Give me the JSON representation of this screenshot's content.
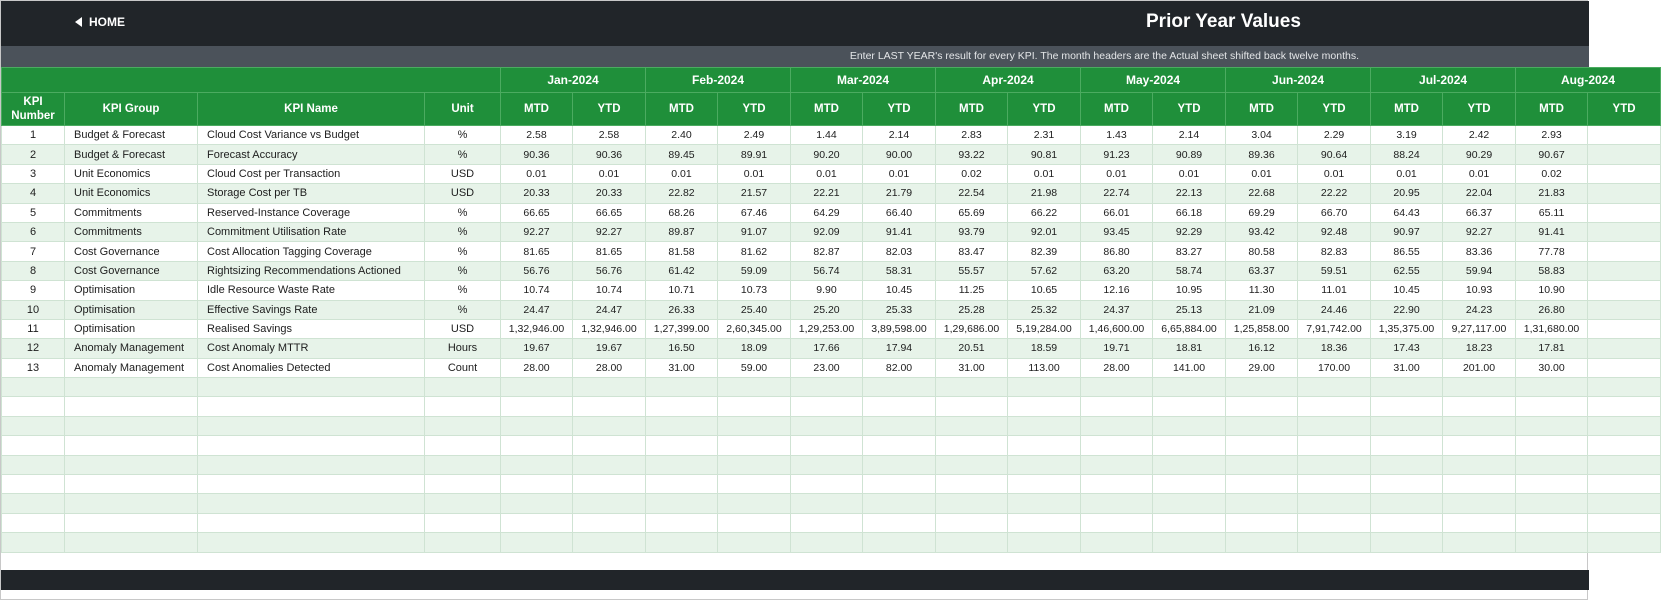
{
  "header": {
    "home_label": "HOME",
    "title": "Prior Year Values"
  },
  "subheader": {
    "hint": "Enter LAST YEAR's result for every KPI. The month headers are the Actual sheet shifted back twelve months."
  },
  "table": {
    "columns": {
      "kpi_number": "KPI Number",
      "kpi_group": "KPI Group",
      "kpi_name": "KPI Name",
      "unit": "Unit",
      "mtd": "MTD",
      "ytd": "YTD"
    },
    "months": [
      "Jan-2024",
      "Feb-2024",
      "Mar-2024",
      "Apr-2024",
      "May-2024",
      "Jun-2024",
      "Jul-2024",
      "Aug-2024"
    ],
    "empty_rows": 9,
    "rows": [
      {
        "num": "1",
        "group": "Budget & Forecast",
        "name": "Cloud Cost Variance vs Budget",
        "unit": "%",
        "values": [
          "2.58",
          "2.58",
          "2.40",
          "2.49",
          "1.44",
          "2.14",
          "2.83",
          "2.31",
          "1.43",
          "2.14",
          "3.04",
          "2.29",
          "3.19",
          "2.42",
          "2.93",
          ""
        ]
      },
      {
        "num": "2",
        "group": "Budget & Forecast",
        "name": "Forecast Accuracy",
        "unit": "%",
        "values": [
          "90.36",
          "90.36",
          "89.45",
          "89.91",
          "90.20",
          "90.00",
          "93.22",
          "90.81",
          "91.23",
          "90.89",
          "89.36",
          "90.64",
          "88.24",
          "90.29",
          "90.67",
          ""
        ]
      },
      {
        "num": "3",
        "group": "Unit Economics",
        "name": "Cloud Cost per Transaction",
        "unit": "USD",
        "values": [
          "0.01",
          "0.01",
          "0.01",
          "0.01",
          "0.01",
          "0.01",
          "0.02",
          "0.01",
          "0.01",
          "0.01",
          "0.01",
          "0.01",
          "0.01",
          "0.01",
          "0.02",
          ""
        ]
      },
      {
        "num": "4",
        "group": "Unit Economics",
        "name": "Storage Cost per TB",
        "unit": "USD",
        "values": [
          "20.33",
          "20.33",
          "22.82",
          "21.57",
          "22.21",
          "21.79",
          "22.54",
          "21.98",
          "22.74",
          "22.13",
          "22.68",
          "22.22",
          "20.95",
          "22.04",
          "21.83",
          ""
        ]
      },
      {
        "num": "5",
        "group": "Commitments",
        "name": "Reserved-Instance Coverage",
        "unit": "%",
        "values": [
          "66.65",
          "66.65",
          "68.26",
          "67.46",
          "64.29",
          "66.40",
          "65.69",
          "66.22",
          "66.01",
          "66.18",
          "69.29",
          "66.70",
          "64.43",
          "66.37",
          "65.11",
          ""
        ]
      },
      {
        "num": "6",
        "group": "Commitments",
        "name": "Commitment Utilisation Rate",
        "unit": "%",
        "values": [
          "92.27",
          "92.27",
          "89.87",
          "91.07",
          "92.09",
          "91.41",
          "93.79",
          "92.01",
          "93.45",
          "92.29",
          "93.42",
          "92.48",
          "90.97",
          "92.27",
          "91.41",
          ""
        ]
      },
      {
        "num": "7",
        "group": "Cost Governance",
        "name": "Cost Allocation Tagging Coverage",
        "unit": "%",
        "values": [
          "81.65",
          "81.65",
          "81.58",
          "81.62",
          "82.87",
          "82.03",
          "83.47",
          "82.39",
          "86.80",
          "83.27",
          "80.58",
          "82.83",
          "86.55",
          "83.36",
          "77.78",
          ""
        ]
      },
      {
        "num": "8",
        "group": "Cost Governance",
        "name": "Rightsizing Recommendations Actioned",
        "unit": "%",
        "values": [
          "56.76",
          "56.76",
          "61.42",
          "59.09",
          "56.74",
          "58.31",
          "55.57",
          "57.62",
          "63.20",
          "58.74",
          "63.37",
          "59.51",
          "62.55",
          "59.94",
          "58.83",
          ""
        ]
      },
      {
        "num": "9",
        "group": "Optimisation",
        "name": "Idle Resource Waste Rate",
        "unit": "%",
        "values": [
          "10.74",
          "10.74",
          "10.71",
          "10.73",
          "9.90",
          "10.45",
          "11.25",
          "10.65",
          "12.16",
          "10.95",
          "11.30",
          "11.01",
          "10.45",
          "10.93",
          "10.90",
          ""
        ]
      },
      {
        "num": "10",
        "group": "Optimisation",
        "name": "Effective Savings Rate",
        "unit": "%",
        "values": [
          "24.47",
          "24.47",
          "26.33",
          "25.40",
          "25.20",
          "25.33",
          "25.28",
          "25.32",
          "24.37",
          "25.13",
          "21.09",
          "24.46",
          "22.90",
          "24.23",
          "26.80",
          ""
        ]
      },
      {
        "num": "11",
        "group": "Optimisation",
        "name": "Realised Savings",
        "unit": "USD",
        "values": [
          "1,32,946.00",
          "1,32,946.00",
          "1,27,399.00",
          "2,60,345.00",
          "1,29,253.00",
          "3,89,598.00",
          "1,29,686.00",
          "5,19,284.00",
          "1,46,600.00",
          "6,65,884.00",
          "1,25,858.00",
          "7,91,742.00",
          "1,35,375.00",
          "9,27,117.00",
          "1,31,680.00",
          ""
        ]
      },
      {
        "num": "12",
        "group": "Anomaly Management",
        "name": "Cost Anomaly MTTR",
        "unit": "Hours",
        "values": [
          "19.67",
          "19.67",
          "16.50",
          "18.09",
          "17.66",
          "17.94",
          "20.51",
          "18.59",
          "19.71",
          "18.81",
          "16.12",
          "18.36",
          "17.43",
          "18.23",
          "17.81",
          ""
        ]
      },
      {
        "num": "13",
        "group": "Anomaly Management",
        "name": "Cost Anomalies Detected",
        "unit": "Count",
        "values": [
          "28.00",
          "28.00",
          "31.00",
          "59.00",
          "23.00",
          "82.00",
          "31.00",
          "113.00",
          "28.00",
          "141.00",
          "29.00",
          "170.00",
          "31.00",
          "201.00",
          "30.00",
          ""
        ]
      }
    ]
  }
}
